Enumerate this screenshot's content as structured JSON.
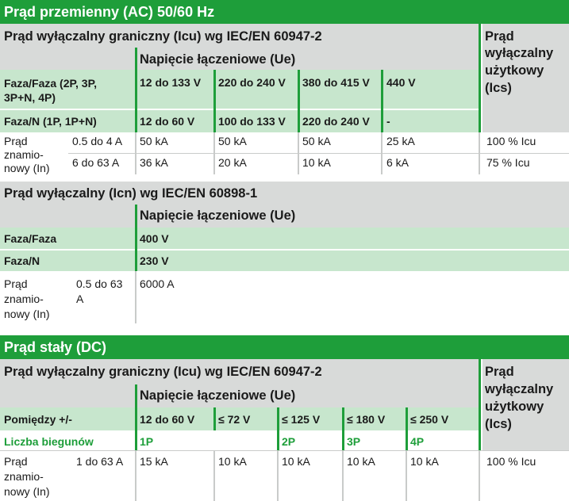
{
  "ac": {
    "title": "Prąd przemienny (AC) 50/60 Hz",
    "icu_title": "Prąd wyłączalny graniczny (Icu) wg IEC/EN 60947-2",
    "voltage_header": "Napięcie łączeniowe (Ue)",
    "ics_header": [
      "Prąd",
      "wyłączalny",
      "użytkowy",
      "(Ics)"
    ],
    "row_faza_faza": {
      "label": [
        "Faza/Faza (2P, 3P,",
        "3P+N, 4P)"
      ],
      "values": [
        "12 do 133 V",
        "220 do 240 V",
        "380 do 415 V",
        "440 V"
      ]
    },
    "row_faza_n": {
      "label": "Faza/N (1P, 1P+N)",
      "values": [
        "12 do 60 V",
        "100 do 133 V",
        "220 do 240 V",
        "-"
      ]
    },
    "rated_label": [
      "Prąd",
      "znamio-",
      "nowy (In)"
    ],
    "rows": [
      {
        "range": "0.5 do 4 A",
        "values": [
          "50 kA",
          "50 kA",
          "50 kA",
          "25 kA"
        ],
        "ics": "100 % Icu"
      },
      {
        "range": "6 do 63 A",
        "values": [
          "36 kA",
          "20 kA",
          "10 kA",
          "6 kA"
        ],
        "ics": "75 % Icu"
      }
    ],
    "icn_title": "Prąd wyłączalny  (Icn) wg IEC/EN 60898-1",
    "icn_voltage_header": "Napięcie łączeniowe (Ue)",
    "icn_faza_faza": {
      "label": "Faza/Faza",
      "value": "400 V"
    },
    "icn_faza_n": {
      "label": "Faza/N",
      "value": "230 V"
    },
    "icn_rated_label": [
      "Prąd",
      "znamio-",
      "nowy (In)"
    ],
    "icn_range": [
      "0.5 do 63",
      "A"
    ],
    "icn_value": "6000 A"
  },
  "dc": {
    "title": "Prąd stały (DC)",
    "icu_title": "Prąd wyłączalny graniczny (Icu) wg IEC/EN 60947-2",
    "voltage_header": "Napięcie łączeniowe (Ue)",
    "ics_header": [
      "Prąd",
      "wyłączalny",
      "użytkowy",
      "(Ics)"
    ],
    "row_between": {
      "label": "Pomiędzy  +/-",
      "values": [
        "12 do 60 V",
        "≤ 72 V",
        "≤ 125 V",
        "≤ 180 V",
        "≤ 250 V"
      ]
    },
    "row_poles": {
      "label": "Liczba biegunów",
      "values": [
        "1P",
        "2P",
        "3P",
        "4P"
      ]
    },
    "rated_label": [
      "Prąd",
      "znamio-",
      "nowy (In)"
    ],
    "row": {
      "range": "1 do 63 A",
      "values": [
        "15 kA",
        "10 kA",
        "10 kA",
        "10 kA",
        "10 kA"
      ],
      "ics": "100 % Icu"
    }
  },
  "colors": {
    "green": "#1e9e3a",
    "grey": "#d8dad9",
    "light_green": "#c7e6cd"
  }
}
